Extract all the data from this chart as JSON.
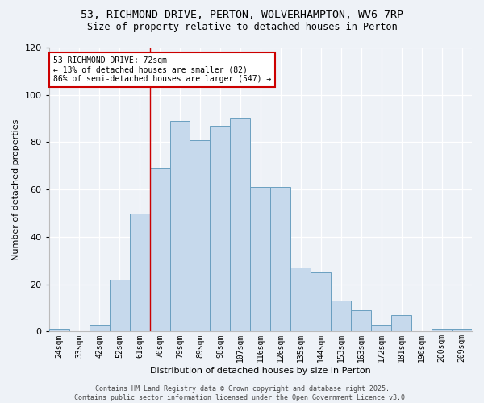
{
  "title_line1": "53, RICHMOND DRIVE, PERTON, WOLVERHAMPTON, WV6 7RP",
  "title_line2": "Size of property relative to detached houses in Perton",
  "xlabel": "Distribution of detached houses by size in Perton",
  "ylabel": "Number of detached properties",
  "bar_labels": [
    "24sqm",
    "33sqm",
    "42sqm",
    "52sqm",
    "61sqm",
    "70sqm",
    "79sqm",
    "89sqm",
    "98sqm",
    "107sqm",
    "116sqm",
    "126sqm",
    "135sqm",
    "144sqm",
    "153sqm",
    "163sqm",
    "172sqm",
    "181sqm",
    "190sqm",
    "200sqm",
    "209sqm"
  ],
  "bar_heights": [
    1,
    0,
    3,
    22,
    50,
    69,
    89,
    81,
    87,
    90,
    61,
    61,
    27,
    25,
    13,
    9,
    3,
    7,
    0,
    1,
    1
  ],
  "bar_color": "#c6d9ec",
  "bar_edge_color": "#6a9fc0",
  "vline_x": 4.5,
  "vline_color": "#cc0000",
  "ylim": [
    0,
    120
  ],
  "yticks": [
    0,
    20,
    40,
    60,
    80,
    100,
    120
  ],
  "annotation_text": "53 RICHMOND DRIVE: 72sqm\n← 13% of detached houses are smaller (82)\n86% of semi-detached houses are larger (547) →",
  "annotation_box_color": "white",
  "annotation_border_color": "#cc0000",
  "footer_line1": "Contains HM Land Registry data © Crown copyright and database right 2025.",
  "footer_line2": "Contains public sector information licensed under the Open Government Licence v3.0.",
  "background_color": "#eef2f7",
  "title1_fontsize": 9.5,
  "title2_fontsize": 8.5,
  "axis_label_fontsize": 8,
  "tick_fontsize": 7,
  "annotation_fontsize": 7,
  "footer_fontsize": 6
}
